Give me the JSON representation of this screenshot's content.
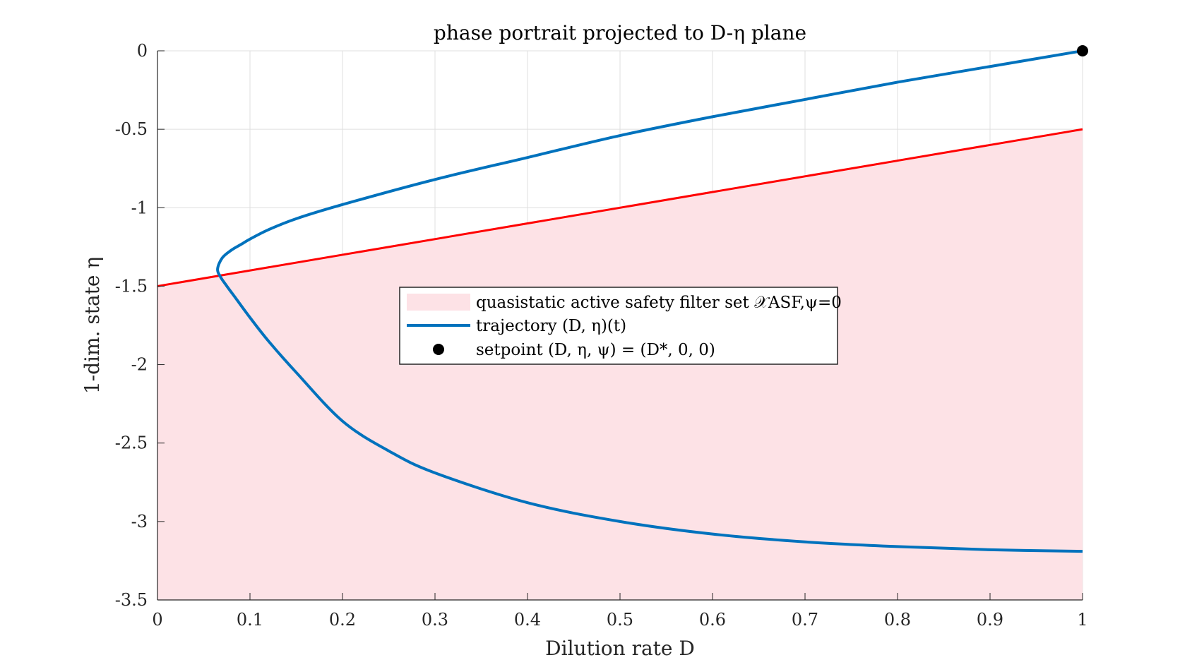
{
  "chart_data": {
    "type": "line",
    "title": "phase portrait projected to D-η plane",
    "xlabel": "Dilution rate D",
    "ylabel": "1-dim. state η",
    "xlim": [
      0,
      1
    ],
    "ylim": [
      -3.5,
      0
    ],
    "x_ticks": [
      "0",
      "0.1",
      "0.2",
      "0.3",
      "0.4",
      "0.5",
      "0.6",
      "0.7",
      "0.8",
      "0.9",
      "1"
    ],
    "y_ticks": [
      "0",
      "-0.5",
      "-1",
      "-1.5",
      "-2",
      "-2.5",
      "-3",
      "-3.5"
    ],
    "grid": true,
    "legend_position": "center",
    "colors": {
      "region_fill": "#fde2e6",
      "boundary": "#ff0000",
      "trajectory": "#0072bd",
      "setpoint": "#000000"
    },
    "series": [
      {
        "name": "quasistatic active safety filter set 𝒳ASF,ψ=0",
        "kind": "area",
        "boundary_x": [
          0,
          1
        ],
        "boundary_y": [
          -1.5,
          -0.5
        ]
      },
      {
        "name": "trajectory (D, η)(t)",
        "kind": "line",
        "x": [
          1.0,
          0.9,
          0.8,
          0.7,
          0.6,
          0.5,
          0.4,
          0.3,
          0.2,
          0.15,
          0.12,
          0.1,
          0.09,
          0.08,
          0.07,
          0.065,
          0.068,
          0.075,
          0.085,
          0.1,
          0.12,
          0.15,
          0.2,
          0.25,
          0.3,
          0.4,
          0.5,
          0.6,
          0.7,
          0.8,
          0.9,
          1.0
        ],
        "y": [
          0.0,
          -0.1,
          -0.2,
          -0.31,
          -0.42,
          -0.54,
          -0.68,
          -0.82,
          -0.98,
          -1.07,
          -1.14,
          -1.2,
          -1.235,
          -1.27,
          -1.32,
          -1.39,
          -1.44,
          -1.5,
          -1.58,
          -1.7,
          -1.85,
          -2.05,
          -2.36,
          -2.55,
          -2.69,
          -2.88,
          -3.0,
          -3.08,
          -3.13,
          -3.16,
          -3.18,
          -3.19
        ]
      },
      {
        "name": "setpoint (D, η, ψ) = (D*, 0, 0)",
        "kind": "scatter",
        "x": [
          1.0
        ],
        "y": [
          0.0
        ]
      }
    ]
  }
}
